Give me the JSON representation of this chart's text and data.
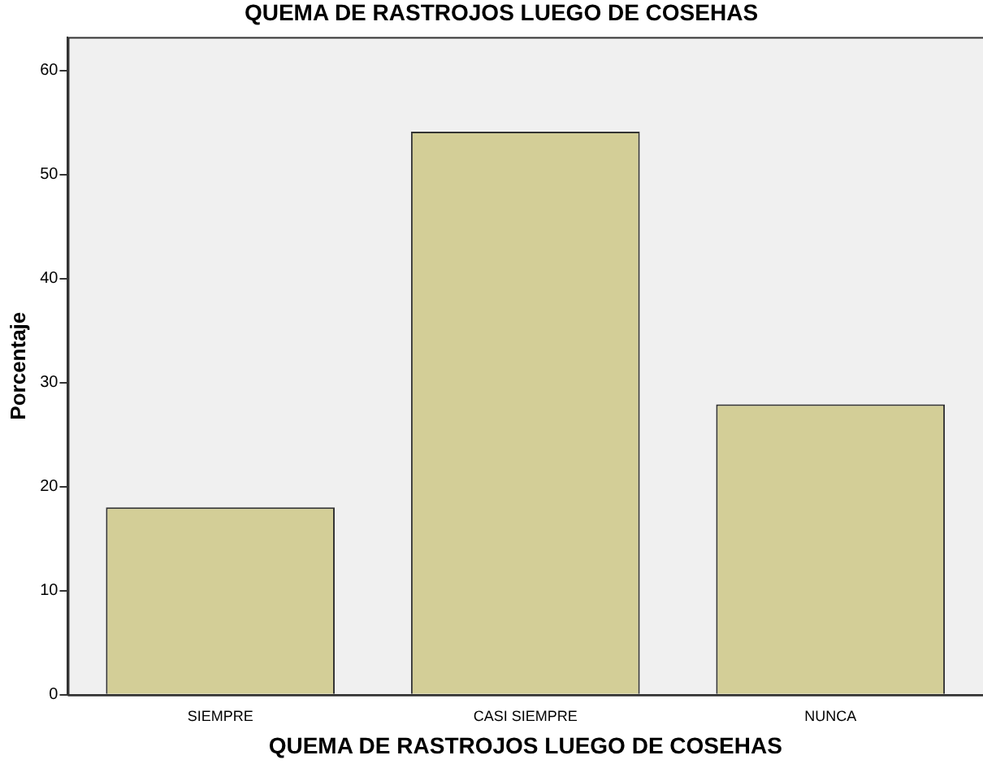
{
  "chart_data": {
    "type": "bar",
    "title": "QUEMA DE RASTROJOS LUEGO DE COSEHAS",
    "xlabel": "QUEMA DE RASTROJOS LUEGO DE COSEHAS",
    "ylabel": "Porcentaje",
    "categories": [
      "SIEMPRE",
      "CASI SIEMPRE",
      "NUNCA"
    ],
    "values": [
      18,
      54.1,
      27.9
    ],
    "color": "#d3ce97",
    "ylim": [
      0,
      63.2
    ],
    "yticks": [
      0,
      10,
      20,
      30,
      40,
      50,
      60
    ],
    "grid": false,
    "legend": false
  }
}
